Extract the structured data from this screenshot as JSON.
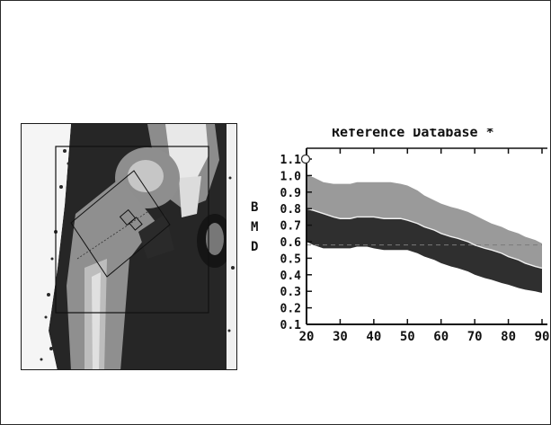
{
  "scan": {
    "label": "hip-dxa-scan"
  },
  "chart_data": {
    "type": "area",
    "title": "Reference Database",
    "title_suffix": "*",
    "ylabel_letters": [
      "B",
      "M",
      "D"
    ],
    "xlim": [
      20,
      90
    ],
    "ylim": [
      0.1,
      1.1
    ],
    "x_ticks": [
      20,
      30,
      40,
      50,
      60,
      70,
      80,
      90
    ],
    "y_ticks": [
      "1.1",
      "1.0",
      "0.9",
      "0.8",
      "0.7",
      "0.6",
      "0.5",
      "0.4",
      "0.3",
      "0.2",
      "0.1"
    ],
    "x": [
      20,
      22,
      25,
      28,
      30,
      33,
      35,
      38,
      40,
      43,
      45,
      48,
      50,
      53,
      55,
      58,
      60,
      63,
      65,
      68,
      70,
      73,
      75,
      78,
      80,
      83,
      85,
      88,
      90
    ],
    "series": [
      {
        "values_upper": [
          1.0,
          0.99,
          0.96,
          0.95,
          0.95,
          0.95,
          0.96,
          0.96,
          0.96,
          0.96,
          0.96,
          0.95,
          0.94,
          0.91,
          0.88,
          0.85,
          0.83,
          0.81,
          0.8,
          0.78,
          0.76,
          0.73,
          0.71,
          0.69,
          0.67,
          0.65,
          0.63,
          0.61,
          0.59
        ]
      },
      {
        "values_upper": [
          0.8,
          0.79,
          0.77,
          0.75,
          0.74,
          0.74,
          0.75,
          0.75,
          0.75,
          0.74,
          0.74,
          0.74,
          0.73,
          0.71,
          0.69,
          0.67,
          0.65,
          0.63,
          0.62,
          0.6,
          0.58,
          0.56,
          0.55,
          0.53,
          0.51,
          0.49,
          0.47,
          0.45,
          0.44
        ]
      },
      {
        "values_lower": [
          0.6,
          0.58,
          0.56,
          0.56,
          0.56,
          0.56,
          0.57,
          0.57,
          0.56,
          0.55,
          0.55,
          0.55,
          0.55,
          0.53,
          0.51,
          0.49,
          0.47,
          0.45,
          0.44,
          0.42,
          0.4,
          0.38,
          0.37,
          0.35,
          0.34,
          0.32,
          0.31,
          0.3,
          0.29
        ]
      }
    ],
    "patient_marker": {
      "x": 20,
      "y": 1.1
    },
    "reference_line_y": 0.58,
    "colors": {
      "upper_band": "#9a9a9a",
      "lower_band": "#2f2f2f",
      "reference_line": "#7a7a7a",
      "axis": "#111111"
    }
  }
}
